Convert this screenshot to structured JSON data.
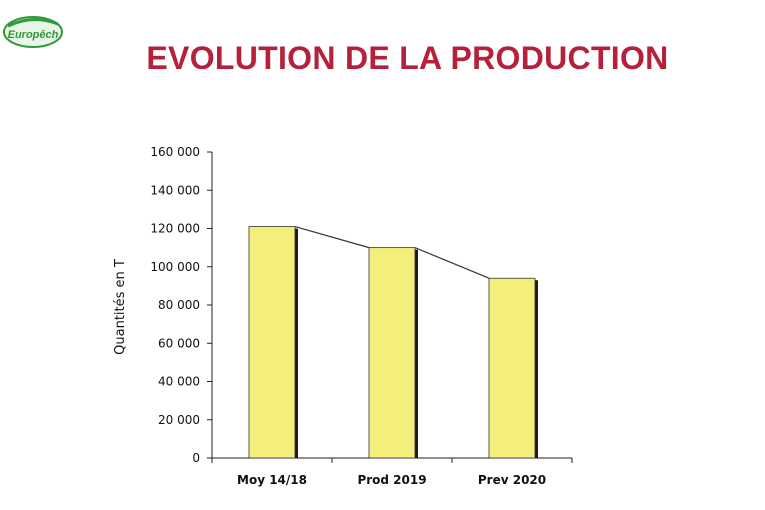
{
  "logo": {
    "text": "Europêch"
  },
  "page": {
    "title": "EVOLUTION DE LA PRODUCTION"
  },
  "colors": {
    "title": "#b5203a",
    "bar_fill": "#f4ef7a",
    "bar_shade": "#1a1a1a",
    "logo_green": "#2e9a3a"
  },
  "chart_data": {
    "type": "bar",
    "title": "EVOLUTION DE LA PRODUCTION",
    "categories": [
      "Moy 14/18",
      "Prod 2019",
      "Prev 2020"
    ],
    "values": [
      121000,
      110000,
      94000
    ],
    "xlabel": "",
    "ylabel": "Quantités en T",
    "ylim": [
      0,
      160000
    ],
    "yticks": [
      0,
      20000,
      40000,
      60000,
      80000,
      100000,
      120000,
      140000,
      160000
    ],
    "ytick_labels": [
      "0",
      "20 000",
      "40 000",
      "60 000",
      "80 000",
      "100 000",
      "120 000",
      "140 000",
      "160 000"
    ],
    "trend_line": true,
    "grid": false,
    "legend": "none"
  }
}
